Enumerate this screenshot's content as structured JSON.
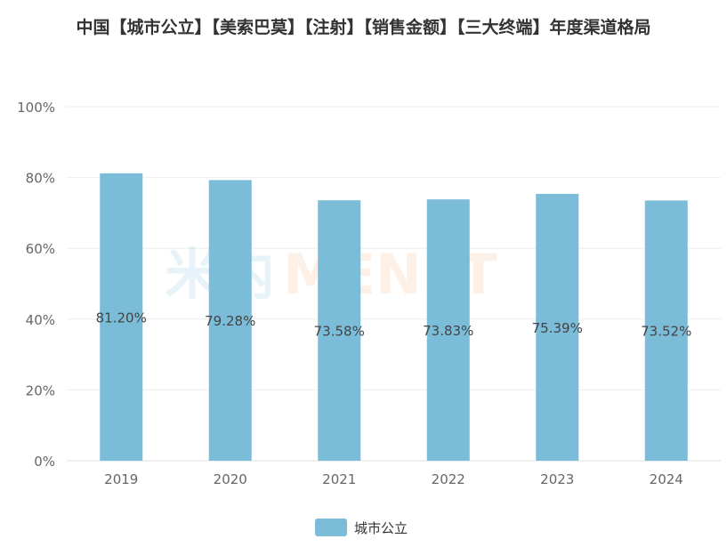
{
  "chart_data": {
    "type": "bar",
    "title": "中国【城市公立】【美索巴莫】【注射】【销售金额】【三大终端】年度渠道格局",
    "categories": [
      "2019",
      "2020",
      "2021",
      "2022",
      "2023",
      "2024"
    ],
    "series": [
      {
        "name": "城市公立",
        "values": [
          81.2,
          79.28,
          73.58,
          73.83,
          75.39,
          73.52
        ],
        "color": "#7bbcd9"
      }
    ],
    "data_labels": [
      "81.20%",
      "79.28%",
      "73.58%",
      "73.83%",
      "75.39%",
      "73.52%"
    ],
    "ylim": [
      0,
      100
    ],
    "yticks": [
      "0%",
      "20%",
      "40%",
      "60%",
      "80%",
      "100%"
    ],
    "grid": true,
    "legend": "bottom-center"
  },
  "watermark": "米内MENET"
}
